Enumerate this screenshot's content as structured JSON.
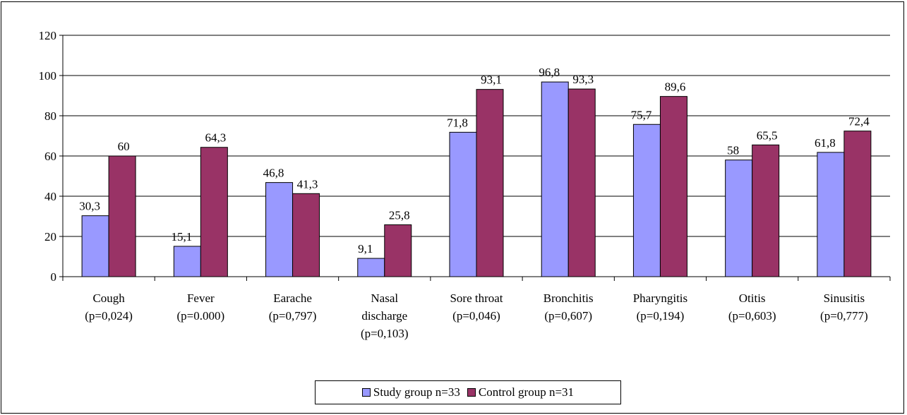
{
  "chart_data": {
    "type": "bar",
    "categories": [
      [
        "Cough",
        "(p=0,024)"
      ],
      [
        "Fever",
        "(p=0.000)"
      ],
      [
        "Earache",
        "(p=0,797)"
      ],
      [
        "Nasal",
        "discharge",
        "(p=0,103)"
      ],
      [
        "Sore throat",
        "(p=0,046)"
      ],
      [
        "Bronchitis",
        "(p=0,607)"
      ],
      [
        "Pharyngitis",
        "(p=0,194)"
      ],
      [
        "Otitis",
        "(p=0,603)"
      ],
      [
        "Sinusitis",
        "(p=0,777)"
      ]
    ],
    "series": [
      {
        "name": "Study group n=33",
        "color": "#9999ff",
        "values": [
          30.3,
          15.1,
          46.8,
          9.1,
          71.8,
          96.8,
          75.7,
          58,
          61.8
        ],
        "labels": [
          "30,3",
          "15,1",
          "46,8",
          "9,1",
          "71,8",
          "96,8",
          "75,7",
          "58",
          "61,8"
        ]
      },
      {
        "name": "Control group n=31",
        "color": "#993366",
        "values": [
          60,
          64.3,
          41.3,
          25.8,
          93.1,
          93.3,
          89.6,
          65.5,
          72.4
        ],
        "labels": [
          "60",
          "64,3",
          "41,3",
          "25,8",
          "93,1",
          "93,3",
          "89,6",
          "65,5",
          "72,4"
        ]
      }
    ],
    "ylim": [
      0,
      120
    ],
    "yticks": [
      "0",
      "20",
      "40",
      "60",
      "80",
      "100",
      "120"
    ],
    "grid": true,
    "legend_position": "bottom",
    "title": "",
    "xlabel": "",
    "ylabel": ""
  }
}
